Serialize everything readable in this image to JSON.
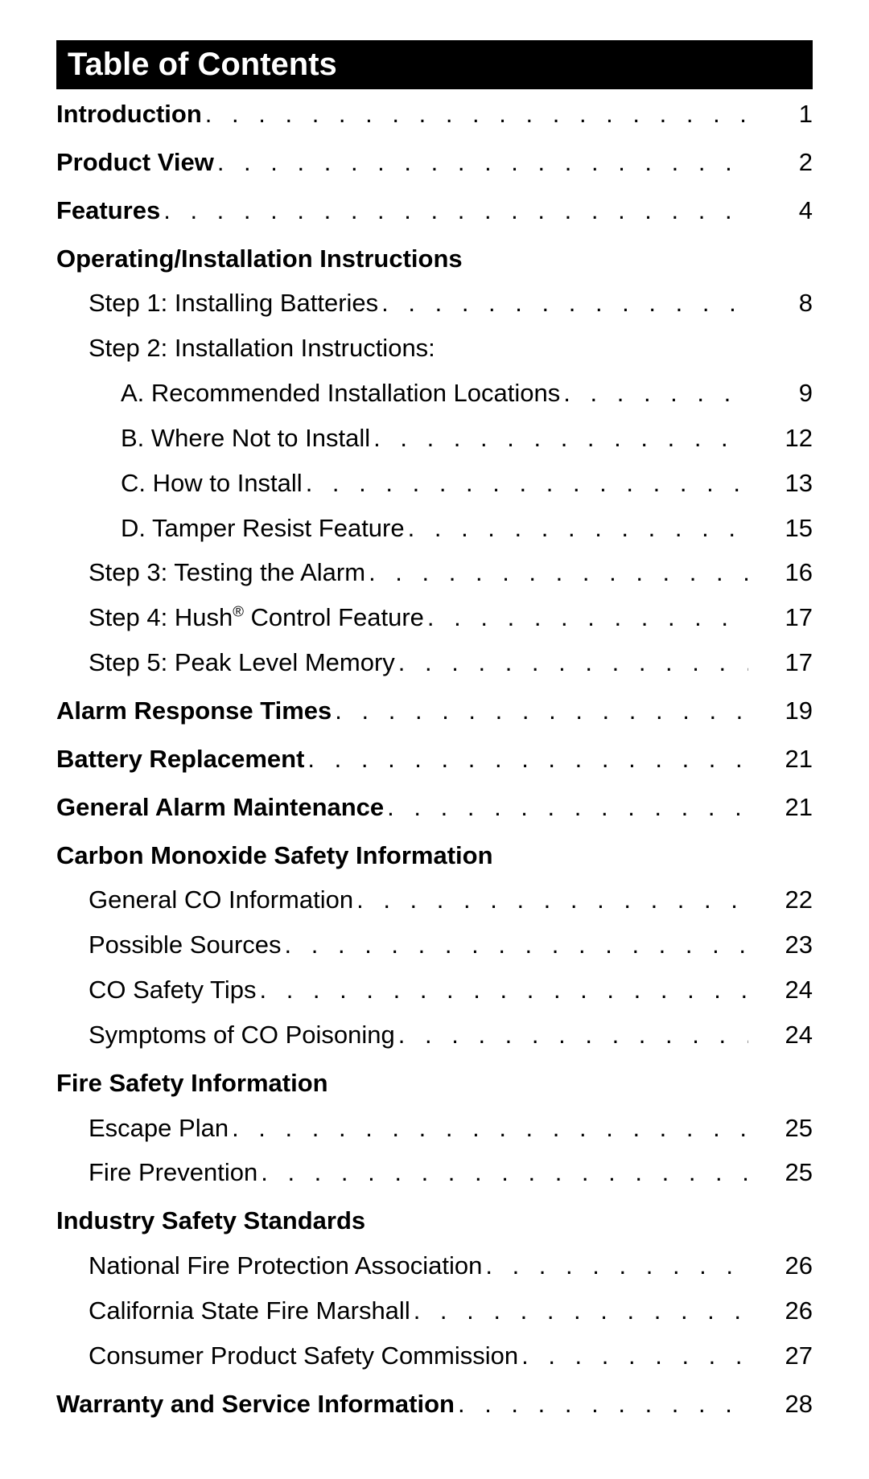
{
  "title": "Table of Contents",
  "entries": [
    {
      "label": "Introduction",
      "page": "1",
      "bold": true,
      "indent": 0
    },
    {
      "label": "Product View",
      "page": "2",
      "bold": true,
      "indent": 0,
      "break": true
    },
    {
      "label": "Features",
      "page": "4",
      "bold": true,
      "indent": 0,
      "break": true
    },
    {
      "label": "Operating/Installation Instructions",
      "page": "",
      "bold": true,
      "indent": 0,
      "break": true
    },
    {
      "label": "Step 1: Installing Batteries",
      "page": "8",
      "bold": false,
      "indent": 1
    },
    {
      "label": "Step 2: Installation Instructions:",
      "page": "",
      "bold": false,
      "indent": 1
    },
    {
      "label": "A. Recommended Installation Locations",
      "page": "9",
      "bold": false,
      "indent": 2
    },
    {
      "label": "B. Where Not to Install",
      "page": "12",
      "bold": false,
      "indent": 2
    },
    {
      "label": "C. How to Install",
      "page": "13",
      "bold": false,
      "indent": 2
    },
    {
      "label": "D. Tamper Resist Feature",
      "page": "15",
      "bold": false,
      "indent": 2
    },
    {
      "label": "Step 3: Testing the Alarm",
      "page": "16",
      "bold": false,
      "indent": 1
    },
    {
      "label": "Step 4: Hush<sup>®</sup> Control Feature",
      "page": "17",
      "bold": false,
      "indent": 1,
      "html": true
    },
    {
      "label": "Step 5: Peak Level Memory",
      "page": "17",
      "bold": false,
      "indent": 1
    },
    {
      "label": "Alarm Response Times",
      "page": "19",
      "bold": true,
      "indent": 0,
      "break": true
    },
    {
      "label": "Battery Replacement",
      "page": "21",
      "bold": true,
      "indent": 0,
      "break": true
    },
    {
      "label": "General Alarm Maintenance",
      "page": "21",
      "bold": true,
      "indent": 0,
      "break": true
    },
    {
      "label": "Carbon Monoxide Safety Information",
      "page": "",
      "bold": true,
      "indent": 0,
      "break": true
    },
    {
      "label": "General CO Information",
      "page": "22",
      "bold": false,
      "indent": 1
    },
    {
      "label": "Possible Sources",
      "page": "23",
      "bold": false,
      "indent": 1
    },
    {
      "label": "CO Safety Tips",
      "page": "24",
      "bold": false,
      "indent": 1
    },
    {
      "label": "Symptoms of CO Poisoning",
      "page": "24",
      "bold": false,
      "indent": 1
    },
    {
      "label": "Fire Safety Information",
      "page": "",
      "bold": true,
      "indent": 0,
      "break": true
    },
    {
      "label": "Escape Plan",
      "page": "25",
      "bold": false,
      "indent": 1
    },
    {
      "label": "Fire Prevention",
      "page": "25",
      "bold": false,
      "indent": 1
    },
    {
      "label": "Industry Safety Standards",
      "page": "",
      "bold": true,
      "indent": 0,
      "break": true
    },
    {
      "label": "National Fire Protection Association",
      "page": "26",
      "bold": false,
      "indent": 1
    },
    {
      "label": "California State Fire Marshall",
      "page": "26",
      "bold": false,
      "indent": 1
    },
    {
      "label": "Consumer Product Safety Commission",
      "page": "27",
      "bold": false,
      "indent": 1
    },
    {
      "label": "Warranty and Service Information",
      "page": "28",
      "bold": true,
      "indent": 0,
      "break": true
    }
  ],
  "colors": {
    "header_bg": "#000000",
    "header_text": "#ffffff",
    "body_bg": "#ffffff",
    "text": "#000000"
  },
  "typography": {
    "header_fontsize": 40,
    "entry_fontsize": 31,
    "font_family": "Arial, Helvetica, sans-serif"
  }
}
